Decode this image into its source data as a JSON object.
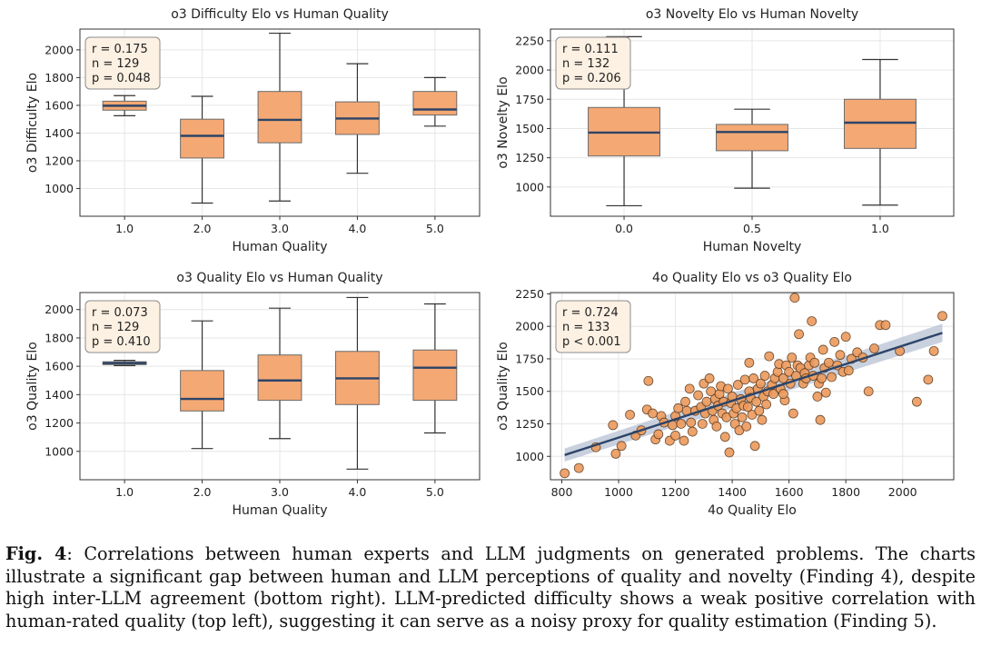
{
  "colors": {
    "box_fill": "#f4a874",
    "box_edge": "#6b6b6b",
    "median": "#2c4468",
    "grid": "#e6e6e6",
    "scatter_fill": "#ec9a5c",
    "scatter_edge": "#5c3a1e",
    "regression_line": "#2c4468",
    "ci_band": "#b7c2d4",
    "stats_box_fill": "#fdf1e3",
    "stats_box_edge": "#8c8c8c"
  },
  "chart_data": [
    {
      "type": "box",
      "title": "o3 Difficulty Elo vs Human Quality",
      "xlabel": "Human Quality",
      "ylabel": "o3 Difficulty Elo",
      "categories": [
        "1.0",
        "2.0",
        "3.0",
        "4.0",
        "5.0"
      ],
      "ylim": [
        800,
        2150
      ],
      "yticks": [
        1000,
        1200,
        1400,
        1600,
        1800,
        2000
      ],
      "boxes": [
        {
          "whislo": 1525,
          "q1": 1565,
          "med": 1597,
          "q3": 1630,
          "whishi": 1670
        },
        {
          "whislo": 895,
          "q1": 1220,
          "med": 1380,
          "q3": 1500,
          "whishi": 1665
        },
        {
          "whislo": 910,
          "q1": 1330,
          "med": 1495,
          "q3": 1700,
          "whishi": 2120
        },
        {
          "whislo": 1110,
          "q1": 1390,
          "med": 1505,
          "q3": 1625,
          "whishi": 1900
        },
        {
          "whislo": 1450,
          "q1": 1530,
          "med": 1570,
          "q3": 1700,
          "whishi": 1800
        }
      ],
      "stats": [
        "r = 0.175",
        "n = 129",
        "p = 0.048"
      ]
    },
    {
      "type": "box",
      "title": "o3 Novelty Elo vs Human Novelty",
      "xlabel": "Human Novelty",
      "ylabel": "o3 Novelty Elo",
      "categories": [
        "0.0",
        "0.5",
        "1.0"
      ],
      "ylim": [
        750,
        2350
      ],
      "yticks": [
        1000,
        1250,
        1500,
        1750,
        2000,
        2250
      ],
      "boxes": [
        {
          "whislo": 840,
          "q1": 1265,
          "med": 1465,
          "q3": 1680,
          "whishi": 2285
        },
        {
          "whislo": 990,
          "q1": 1310,
          "med": 1470,
          "q3": 1535,
          "whishi": 1665
        },
        {
          "whislo": 845,
          "q1": 1330,
          "med": 1550,
          "q3": 1750,
          "whishi": 2090
        }
      ],
      "stats": [
        "r = 0.111",
        "n = 132",
        "p = 0.206"
      ]
    },
    {
      "type": "box",
      "title": "o3 Quality Elo vs Human Quality",
      "xlabel": "Human Quality",
      "ylabel": "o3 Quality Elo",
      "categories": [
        "1.0",
        "2.0",
        "3.0",
        "4.0",
        "5.0"
      ],
      "ylim": [
        800,
        2120
      ],
      "yticks": [
        1000,
        1200,
        1400,
        1600,
        1800,
        2000
      ],
      "boxes": [
        {
          "whislo": 1605,
          "q1": 1612,
          "med": 1622,
          "q3": 1632,
          "whishi": 1642
        },
        {
          "whislo": 1020,
          "q1": 1285,
          "med": 1370,
          "q3": 1570,
          "whishi": 1920
        },
        {
          "whislo": 1090,
          "q1": 1360,
          "med": 1500,
          "q3": 1680,
          "whishi": 2010
        },
        {
          "whislo": 875,
          "q1": 1330,
          "med": 1515,
          "q3": 1705,
          "whishi": 2085
        },
        {
          "whislo": 1130,
          "q1": 1360,
          "med": 1590,
          "q3": 1715,
          "whishi": 2040
        }
      ],
      "stats": [
        "r = 0.073",
        "n = 129",
        "p = 0.410"
      ]
    },
    {
      "type": "scatter",
      "title": "4o Quality Elo vs o3 Quality Elo",
      "xlabel": "4o Quality Elo",
      "ylabel": "o3 Quality Elo",
      "xlim": [
        760,
        2180
      ],
      "ylim": [
        820,
        2260
      ],
      "xticks": [
        800,
        1000,
        1200,
        1400,
        1600,
        1800,
        2000
      ],
      "yticks": [
        1000,
        1250,
        1500,
        1750,
        2000,
        2250
      ],
      "regression": {
        "x": [
          810,
          2140
        ],
        "y": [
          1010,
          1950
        ],
        "ci_halfwidth": [
          50,
          70
        ]
      },
      "points": [
        [
          810,
          870
        ],
        [
          860,
          910
        ],
        [
          920,
          1070
        ],
        [
          980,
          1240
        ],
        [
          990,
          1020
        ],
        [
          1010,
          1080
        ],
        [
          1040,
          1320
        ],
        [
          1060,
          1160
        ],
        [
          1080,
          1200
        ],
        [
          1100,
          1360
        ],
        [
          1105,
          1580
        ],
        [
          1120,
          1330
        ],
        [
          1130,
          1130
        ],
        [
          1140,
          1170
        ],
        [
          1150,
          1310
        ],
        [
          1160,
          1260
        ],
        [
          1180,
          1120
        ],
        [
          1190,
          1240
        ],
        [
          1200,
          1160
        ],
        [
          1200,
          1310
        ],
        [
          1210,
          1370
        ],
        [
          1220,
          1250
        ],
        [
          1230,
          1120
        ],
        [
          1235,
          1420
        ],
        [
          1240,
          1350
        ],
        [
          1250,
          1520
        ],
        [
          1255,
          1260
        ],
        [
          1260,
          1190
        ],
        [
          1270,
          1350
        ],
        [
          1280,
          1470
        ],
        [
          1290,
          1380
        ],
        [
          1295,
          1250
        ],
        [
          1300,
          1560
        ],
        [
          1305,
          1330
        ],
        [
          1310,
          1420
        ],
        [
          1320,
          1600
        ],
        [
          1325,
          1500
        ],
        [
          1330,
          1350
        ],
        [
          1335,
          1280
        ],
        [
          1340,
          1440
        ],
        [
          1345,
          1230
        ],
        [
          1350,
          1390
        ],
        [
          1355,
          1480
        ],
        [
          1360,
          1540
        ],
        [
          1365,
          1330
        ],
        [
          1370,
          1420
        ],
        [
          1375,
          1150
        ],
        [
          1380,
          1300
        ],
        [
          1385,
          1520
        ],
        [
          1390,
          1030
        ],
        [
          1395,
          1410
        ],
        [
          1400,
          1460
        ],
        [
          1405,
          1330
        ],
        [
          1410,
          1250
        ],
        [
          1415,
          1370
        ],
        [
          1420,
          1550
        ],
        [
          1425,
          1200
        ],
        [
          1430,
          1440
        ],
        [
          1435,
          1300
        ],
        [
          1440,
          1390
        ],
        [
          1445,
          1590
        ],
        [
          1450,
          1230
        ],
        [
          1455,
          1380
        ],
        [
          1460,
          1500
        ],
        [
          1465,
          1450
        ],
        [
          1470,
          1320
        ],
        [
          1475,
          1600
        ],
        [
          1480,
          1080
        ],
        [
          1485,
          1420
        ],
        [
          1490,
          1520
        ],
        [
          1495,
          1350
        ],
        [
          1500,
          1560
        ],
        [
          1505,
          1280
        ],
        [
          1510,
          1460
        ],
        [
          1515,
          1620
        ],
        [
          1520,
          1400
        ],
        [
          1525,
          1500
        ],
        [
          1530,
          1770
        ],
        [
          1540,
          1550
        ],
        [
          1545,
          1480
        ],
        [
          1550,
          1600
        ],
        [
          1560,
          1650
        ],
        [
          1565,
          1710
        ],
        [
          1570,
          1520
        ],
        [
          1580,
          1600
        ],
        [
          1585,
          1430
        ],
        [
          1590,
          1700
        ],
        [
          1600,
          1650
        ],
        [
          1605,
          1560
        ],
        [
          1610,
          1760
        ],
        [
          1615,
          1330
        ],
        [
          1620,
          2220
        ],
        [
          1625,
          1620
        ],
        [
          1630,
          1700
        ],
        [
          1635,
          1940
        ],
        [
          1640,
          1680
        ],
        [
          1650,
          1560
        ],
        [
          1655,
          1640
        ],
        [
          1660,
          1600
        ],
        [
          1670,
          1700
        ],
        [
          1675,
          1760
        ],
        [
          1680,
          2040
        ],
        [
          1685,
          1620
        ],
        [
          1690,
          1720
        ],
        [
          1700,
          1460
        ],
        [
          1705,
          1560
        ],
        [
          1710,
          1280
        ],
        [
          1715,
          1600
        ],
        [
          1720,
          1820
        ],
        [
          1725,
          1680
        ],
        [
          1730,
          1490
        ],
        [
          1740,
          1720
        ],
        [
          1750,
          1610
        ],
        [
          1760,
          1880
        ],
        [
          1770,
          1700
        ],
        [
          1780,
          1780
        ],
        [
          1790,
          1650
        ],
        [
          1800,
          1920
        ],
        [
          1810,
          1660
        ],
        [
          1820,
          1750
        ],
        [
          1840,
          1800
        ],
        [
          1860,
          1760
        ],
        [
          1880,
          1500
        ],
        [
          1900,
          1830
        ],
        [
          1920,
          2010
        ],
        [
          1940,
          2010
        ],
        [
          1990,
          1810
        ],
        [
          2050,
          1420
        ],
        [
          2090,
          1590
        ],
        [
          2110,
          1810
        ],
        [
          2140,
          2080
        ],
        [
          1580,
          1480
        ],
        [
          1460,
          1720
        ]
      ],
      "stats": [
        "r = 0.724",
        "n = 133",
        "p < 0.001"
      ]
    }
  ],
  "caption": {
    "label": "Fig. 4",
    "text": ": Correlations between human experts and LLM judgments on generated problems. The charts illustrate a significant gap between human and LLM perceptions of quality and novelty (Finding 4), despite high inter-LLM agreement (bottom right). LLM-predicted difficulty shows a weak positive correlation with human-rated quality (top left), suggesting it can serve as a noisy proxy for quality estimation (Finding 5)."
  }
}
